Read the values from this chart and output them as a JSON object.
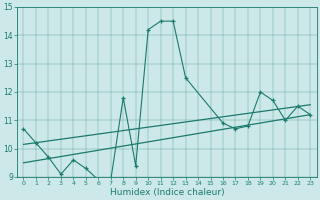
{
  "xlabel": "Humidex (Indice chaleur)",
  "bg_color": "#cde8e8",
  "line_color": "#1a7a6e",
  "xlim": [
    -0.5,
    23.5
  ],
  "ylim": [
    9,
    15
  ],
  "xticks": [
    0,
    1,
    2,
    3,
    4,
    5,
    6,
    7,
    8,
    9,
    10,
    11,
    12,
    13,
    14,
    15,
    16,
    17,
    18,
    19,
    20,
    21,
    22,
    23
  ],
  "yticks": [
    9,
    10,
    11,
    12,
    13,
    14,
    15
  ],
  "series1_x": [
    0,
    1,
    2,
    3,
    4,
    5,
    6,
    7,
    8,
    9,
    10,
    11,
    12,
    13,
    16,
    17,
    18,
    19,
    20,
    21,
    22,
    23
  ],
  "series1_y": [
    10.7,
    10.2,
    9.7,
    9.1,
    9.6,
    9.3,
    8.9,
    8.9,
    11.8,
    9.4,
    14.2,
    14.5,
    14.5,
    12.5,
    10.9,
    10.7,
    10.8,
    12.0,
    11.7,
    11.0,
    11.5,
    11.2
  ],
  "trend1_x": [
    0,
    23
  ],
  "trend1_y": [
    9.5,
    11.2
  ],
  "trend2_x": [
    0,
    23
  ],
  "trend2_y": [
    10.15,
    11.55
  ]
}
